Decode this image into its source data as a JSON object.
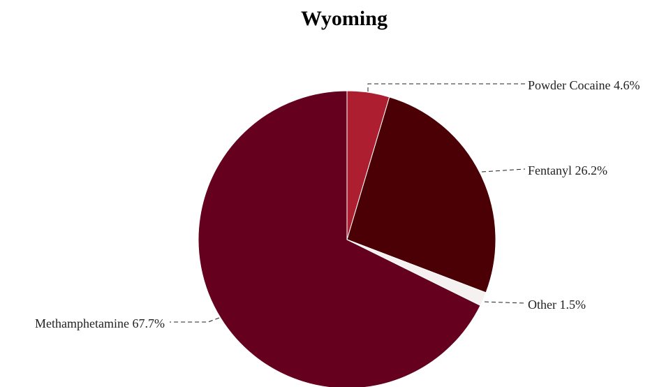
{
  "chart_data": {
    "type": "pie",
    "title": "Wyoming",
    "slices": [
      {
        "name": "Powder Cocaine",
        "value": 4.6,
        "label": "Powder Cocaine 4.6%",
        "color": "#ad1e30"
      },
      {
        "name": "Fentanyl",
        "value": 26.2,
        "label": "Fentanyl 26.2%",
        "color": "#4a0004"
      },
      {
        "name": "Other",
        "value": 1.5,
        "label": "Other 1.5%",
        "color": "#f4f1f0"
      },
      {
        "name": "Methamphetamine",
        "value": 67.7,
        "label": "Methamphetamine 67.7%",
        "color": "#65001f"
      }
    ]
  }
}
